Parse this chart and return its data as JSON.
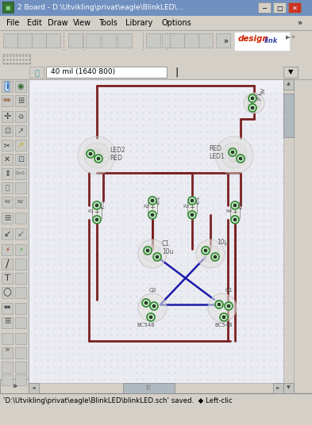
{
  "title": "2 Board - D:\\Utvikling\\privat\\eagle\\BlinkLED\\...",
  "bg_window": "#d4d0c8",
  "bg_canvas": "#eeeef5",
  "wire_color_red": "#7a2020",
  "wire_color_blue": "#1a1aaa",
  "pad_color": "#3a8a3a",
  "component_outline": "#bbbbbb",
  "statusbar_text": "'D:\\Utvikling\\privat\\eagle\\BlinkLED\\blinkLED.sch' saved.  ◆ Left-clic",
  "menubar_items": [
    "File",
    "Edit",
    "Draw",
    "View",
    "Tools",
    "Library",
    "Options"
  ],
  "coord_text": "40 mil (1640 800)",
  "titlebar_bg": "#6688bb",
  "titlebar_text_color": "#ffffff",
  "winbtn_min_bg": "#d4d0c8",
  "winbtn_max_bg": "#d4d0c8",
  "winbtn_close_bg": "#cc3322",
  "toolbar_bg": "#d4d0c8",
  "scrollbar_bg": "#d4d0c8",
  "scrollbar_thumb": "#b8b8b8",
  "canvas_border": "#aaaaaa",
  "grid_dot_color": "#ccccdd",
  "left_panel_bg": "#d4d0c8",
  "status_bar_bg": "#d4d0c8"
}
